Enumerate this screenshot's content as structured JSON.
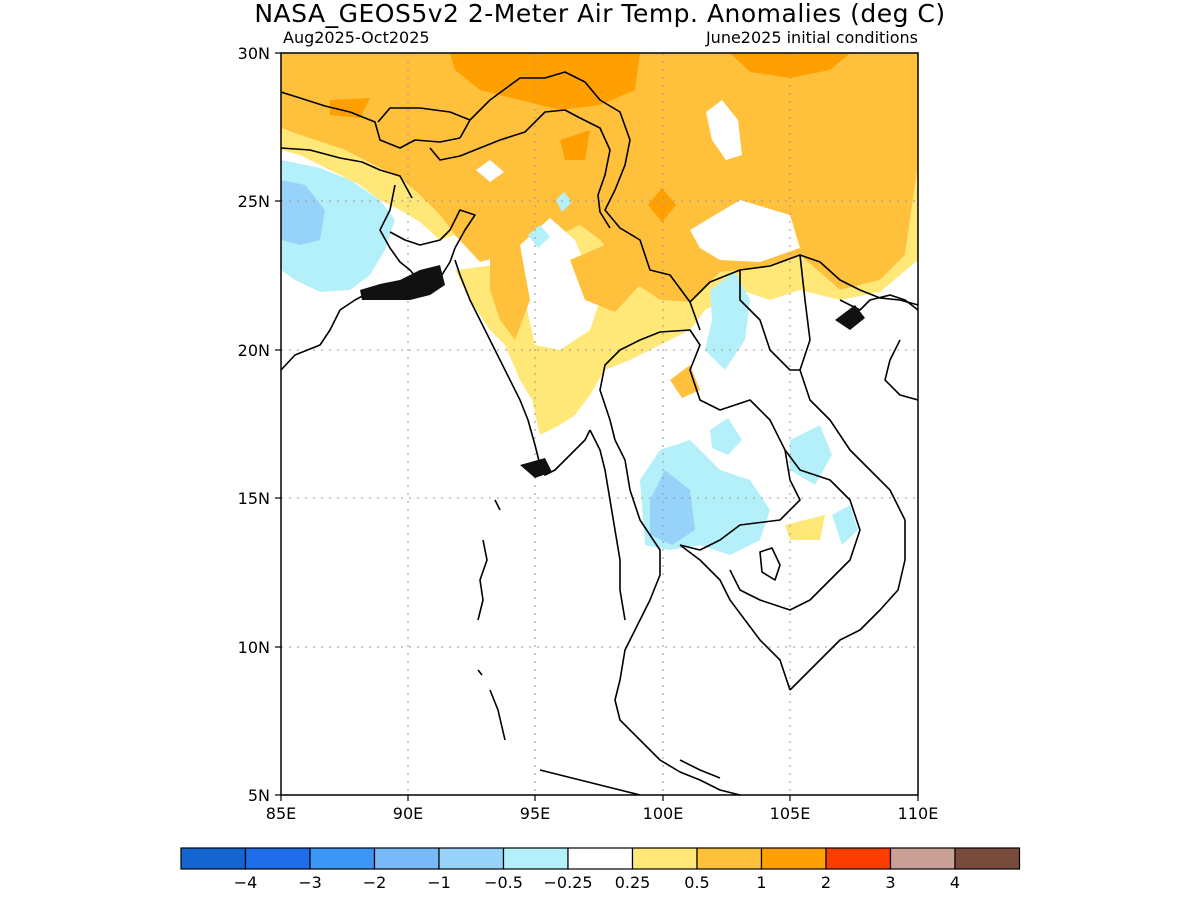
{
  "title": "NASA_GEOS5v2 2-Meter Air Temp. Anomalies (deg C)",
  "subtitle_left": "Aug2025-Oct2025",
  "subtitle_right": "June2025 initial conditions",
  "map": {
    "lat_labels": [
      "30N",
      "25N",
      "20N",
      "15N",
      "10N",
      "5N"
    ],
    "lon_labels": [
      "85E",
      "90E",
      "95E",
      "100E",
      "105E",
      "110E"
    ],
    "lat_range": [
      5,
      30
    ],
    "lon_range": [
      85,
      110
    ],
    "grid": "dotted"
  },
  "colorbar": {
    "colors": [
      "#1464d2",
      "#1e6eeb",
      "#3c96f5",
      "#78b9fa",
      "#96d2fa",
      "#b4f0fa",
      "#ffffff",
      "#ffe878",
      "#ffc03c",
      "#ffa000",
      "#ff3c00",
      "#c8a096",
      "#784b3c"
    ],
    "labels": [
      "-4",
      "-3",
      "-2",
      "-1",
      "-0.5",
      "-0.25",
      "0.25",
      "0.5",
      "1",
      "2",
      "3",
      "4"
    ]
  },
  "palette": {
    "orange": "#ffc03c",
    "dark_orange": "#ffa000",
    "yellow": "#ffe878",
    "light_blue": "#b4f0fa",
    "blue": "#96d2fa",
    "mid_blue": "#78b9fa"
  }
}
